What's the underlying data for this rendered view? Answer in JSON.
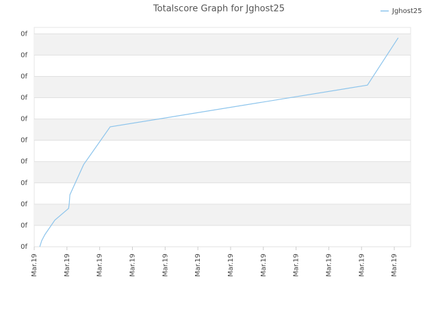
{
  "chart_data": {
    "type": "line",
    "title": "Totalscore Graph for Jghost25",
    "x": [
      0.17,
      0.23,
      0.33,
      0.63,
      1.05,
      1.07,
      1.09,
      1.51,
      2.32,
      10.18,
      11.12
    ],
    "series": [
      {
        "name": "Jghost25",
        "color": "#8cc4ec",
        "values": [
          0,
          0.29,
          0.58,
          1.25,
          1.8,
          2.03,
          2.44,
          3.86,
          5.63,
          7.59,
          9.81
        ]
      }
    ],
    "xlim": [
      0,
      11.5
    ],
    "xticks": [
      {
        "value": 0,
        "label": "Mar.19"
      },
      {
        "value": 1,
        "label": "Mar.19"
      },
      {
        "value": 2,
        "label": "Mar.19"
      },
      {
        "value": 3,
        "label": "Mar.19"
      },
      {
        "value": 4,
        "label": "Mar.19"
      },
      {
        "value": 5,
        "label": "Mar.19"
      },
      {
        "value": 6,
        "label": "Mar.19"
      },
      {
        "value": 7,
        "label": "Mar.19"
      },
      {
        "value": 8,
        "label": "Mar.19"
      },
      {
        "value": 9,
        "label": "Mar.19"
      },
      {
        "value": 10,
        "label": "Mar.19"
      },
      {
        "value": 11,
        "label": "Mar.19"
      }
    ],
    "ylim": [
      0,
      10.3
    ],
    "yticks": [
      {
        "value": 0,
        "label": "0f"
      },
      {
        "value": 1,
        "label": "0f"
      },
      {
        "value": 2,
        "label": "0f"
      },
      {
        "value": 3,
        "label": "0f"
      },
      {
        "value": 4,
        "label": "0f"
      },
      {
        "value": 5,
        "label": "0f"
      },
      {
        "value": 6,
        "label": "0f"
      },
      {
        "value": 7,
        "label": "0f"
      },
      {
        "value": 8,
        "label": "0f"
      },
      {
        "value": 9,
        "label": "0f"
      },
      {
        "value": 10,
        "label": "0f"
      }
    ],
    "grid": true,
    "legend": "top-right"
  }
}
